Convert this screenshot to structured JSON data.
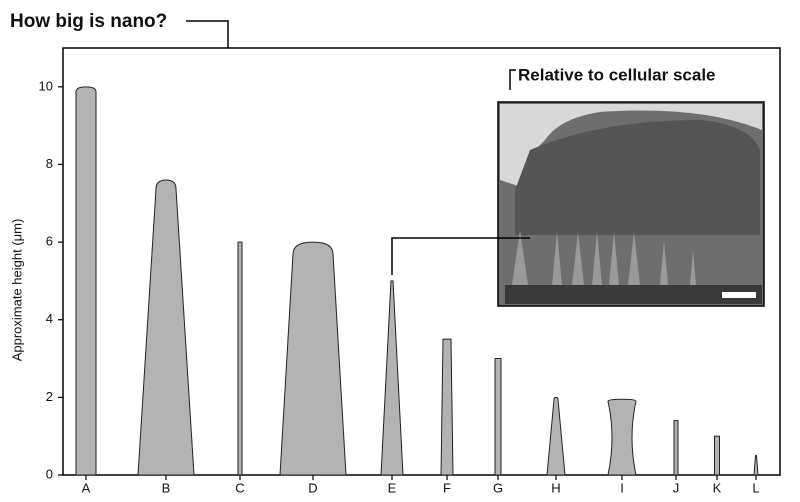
{
  "chart_data": {
    "type": "nano-bar",
    "title": "How big is nano?",
    "inset_title": "Relative to cellular scale",
    "y_label": "Approximate height (μm)",
    "categories": [
      "A",
      "B",
      "C",
      "D",
      "E",
      "F",
      "G",
      "H",
      "I",
      "J",
      "K",
      "L"
    ],
    "values": [
      10,
      7.6,
      6,
      6,
      5,
      3.5,
      3,
      2,
      1.95,
      1.4,
      1,
      0.5
    ],
    "color": "#b3b3b3",
    "ylim": [
      0,
      11
    ],
    "yticks": [
      0,
      2,
      4,
      6,
      8,
      10
    ]
  }
}
